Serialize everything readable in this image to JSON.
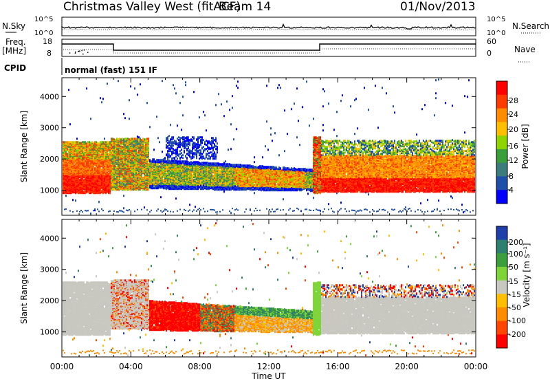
{
  "header": {
    "title": "Christmas Valley West (fitACF)",
    "beam": "Beam 14",
    "date": "01/Nov/2013"
  },
  "top_panels": {
    "nsky_label": "N.Sky",
    "nsky_ticks": [
      "10^5",
      "10^0"
    ],
    "nsearch_label": "N.Search",
    "freq_label_line1": "Freq.",
    "freq_label_line2": "[MHz]",
    "freq_ticks": [
      "18",
      "8"
    ],
    "nave_ticks": [
      "60",
      "0"
    ],
    "nave_label": "Nave",
    "cpid_label": "CPID",
    "cpid_value": "normal (fast) 151 IF"
  },
  "chart_data": [
    {
      "type": "heatmap",
      "name": "power",
      "ylabel": "Slant Range [km]",
      "ylim": [
        200,
        4600
      ],
      "y_ticks": [
        "1000",
        "2000",
        "3000",
        "4000"
      ],
      "x_ticks": [
        "00:00",
        "04:00",
        "08:00",
        "12:00",
        "16:00",
        "20:00",
        "00:00"
      ],
      "colorbar": {
        "label": "Power [dB]",
        "ticks": [
          "28",
          "24",
          "20",
          "16",
          "12",
          "8",
          "4"
        ],
        "colors": [
          "#ff0000",
          "#ff3a00",
          "#ff8c00",
          "#ffbf00",
          "#8fd400",
          "#3a9e3a",
          "#3c7c7c",
          "#1f4fa8",
          "#0000ff"
        ]
      }
    },
    {
      "type": "heatmap",
      "name": "velocity",
      "ylabel": "Slant Range [km]",
      "ylim": [
        200,
        4600
      ],
      "y_ticks": [
        "1000",
        "2000",
        "3000",
        "4000"
      ],
      "xlabel": "Time UT",
      "x_ticks": [
        "00:00",
        "04:00",
        "08:00",
        "12:00",
        "16:00",
        "20:00",
        "00:00"
      ],
      "colorbar": {
        "label": "Velocity [m s⁻¹]",
        "ticks": [
          "200",
          "100",
          "50",
          "15",
          "-15",
          "-50",
          "-100",
          "-200"
        ],
        "colors": [
          "#1f3faa",
          "#2f7f6f",
          "#3c9e3c",
          "#7fd43a",
          "#c8c8c0",
          "#ffbf00",
          "#ff8c00",
          "#ff4500",
          "#ff0000"
        ]
      }
    }
  ]
}
